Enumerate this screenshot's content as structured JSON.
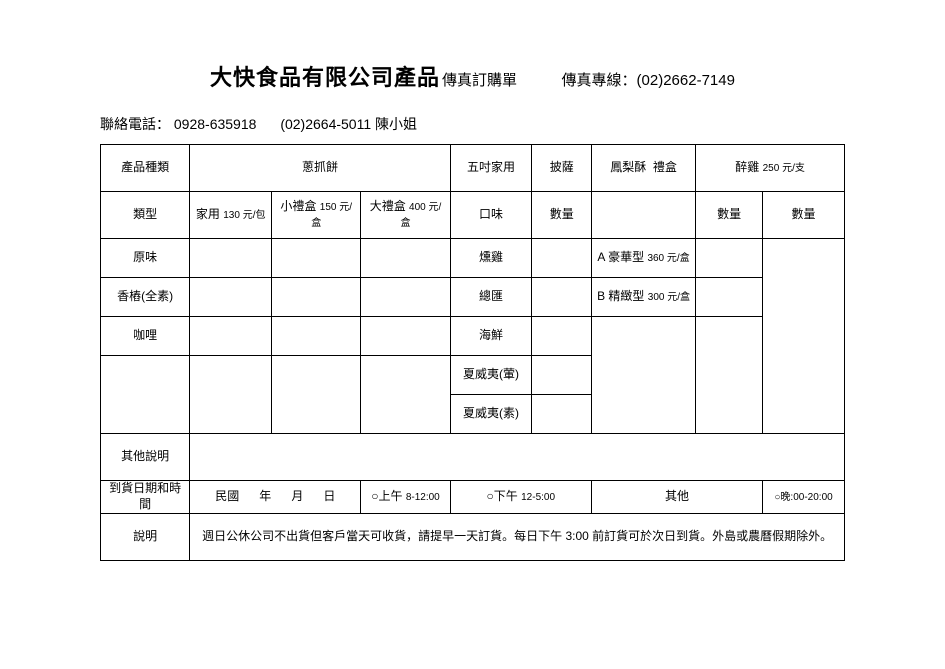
{
  "header": {
    "company": "大快食品有限公司產品",
    "formTitle": "傳真訂購單",
    "faxLabel": "傳真專線：",
    "faxNumber": "(02)2662-7149"
  },
  "contact": {
    "label": "聯絡電話：",
    "mobile": "0928-635918",
    "tel": "(02)2664-5011",
    "person": "陳小姐"
  },
  "headers": {
    "productKind": "產品種類",
    "scallionPancake": "蔥抓餅",
    "fiveInchHome": "五吋家用",
    "pizza": "披薩",
    "pineappleCake": "鳳梨酥",
    "giftBox": "禮盒",
    "drunkChicken": "醉雞",
    "drunkChickenPrice": "250 元/支",
    "type": "類型",
    "homeUse": "家用",
    "homeUsePrice": "130 元/包",
    "smallBox": "小禮盒",
    "smallBoxPrice": "150 元/盒",
    "bigBox": "大禮盒",
    "bigBoxPrice": "400 元/盒",
    "flavor": "口味",
    "qty": "數量"
  },
  "flavors": {
    "original": "原味",
    "basilVeg": "香樁(全素)",
    "curry": "咖哩",
    "smokedChicken": "燻雞",
    "supreme": "總匯",
    "seafood": "海鮮",
    "hawaiiMeat": "夏威夷(葷)",
    "hawaiiVeg": "夏威夷(素)"
  },
  "pineapple": {
    "deluxe": "A 豪華型",
    "deluxePrice": "360 元/盒",
    "fine": "B 精緻型",
    "finePrice": "300 元/盒"
  },
  "otherNote": "其他說明",
  "delivery": {
    "label": "到貨日期和時間",
    "roc": "民國",
    "year": "年",
    "month": "月",
    "day": "日",
    "am": "○上午",
    "amTime": "8-12:00",
    "pm": "○下午",
    "pmTime": "12-5:00",
    "other": "其他",
    "night": "○晚:00-20:00"
  },
  "note": {
    "label": "說明",
    "text": "週日公休公司不出貨但客戶當天可收貨，請提早一天訂貨。每日下午 3:00 前訂貨可於次日到貨。外島或農曆假期除外。"
  },
  "style": {
    "border_color": "#000000",
    "background_color": "#ffffff",
    "title_fontsize": 22,
    "body_fontsize": 12,
    "small_fontsize": 10
  }
}
